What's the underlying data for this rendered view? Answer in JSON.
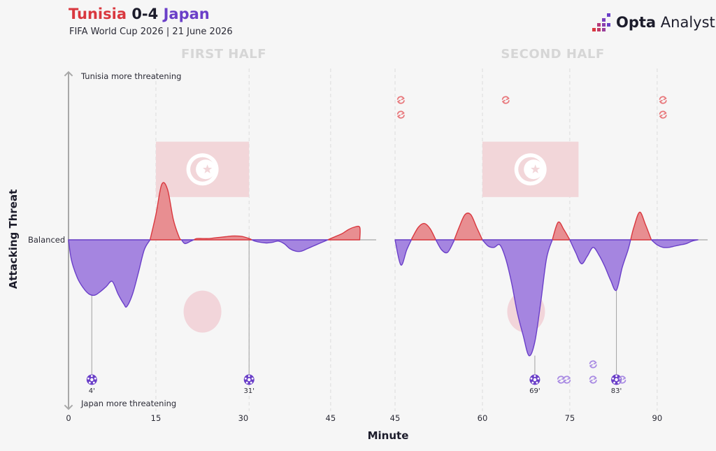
{
  "header": {
    "home_team": "Tunisia",
    "score": "0-4",
    "away_team": "Japan",
    "subtitle": "FIFA World Cup 2026 | 21 June 2026",
    "brand_bold": "Opta",
    "brand_light": " Analyst"
  },
  "colors": {
    "home": "#d9383f",
    "home_fill": "#e88e91",
    "away": "#6a3fc8",
    "away_fill": "#a585e0",
    "flag_fill": "#f2d6d9",
    "sub_home": "#e8787c",
    "sub_away": "#a98be3"
  },
  "icons": {
    "goal": "football-icon",
    "substitution": "substitution-icon",
    "brand": "opta-logo-icon"
  },
  "chart_data": {
    "type": "area",
    "xlabel": "Minute",
    "ylabel": "Attacking Threat",
    "top_annotation": "Tunisia more threatening",
    "bottom_annotation": "Japan more threatening",
    "baseline_label": "Balanced",
    "ylim": [
      -100,
      100
    ],
    "halves": [
      {
        "label": "FIRST HALF",
        "xlim": [
          0,
          54
        ],
        "ticks": [
          0,
          15,
          30,
          45
        ],
        "tick_labels": [
          "0",
          "15",
          "30",
          "45"
        ],
        "gridlines": [
          15,
          31,
          45
        ],
        "threat": {
          "x": [
            0,
            0.5,
            1.5,
            2.5,
            3.5,
            4.5,
            5.5,
            6.5,
            7.5,
            8.5,
            9.5,
            10,
            11,
            12,
            13,
            14,
            15,
            16,
            17,
            18,
            19,
            20,
            21,
            22,
            23,
            24,
            25,
            26,
            27,
            28,
            29,
            30,
            31,
            32,
            33,
            34,
            35,
            36,
            37,
            38,
            39,
            40,
            41,
            42,
            43,
            44,
            45,
            46,
            47,
            48,
            49,
            50
          ],
          "y": [
            0,
            -16,
            -30,
            -38,
            -43,
            -44,
            -41,
            -37,
            -33,
            -43,
            -51,
            -53,
            -43,
            -26,
            -8,
            0,
            20,
            44,
            40,
            16,
            2,
            -3,
            -1,
            1,
            1,
            1,
            1.5,
            2,
            2.5,
            3,
            3,
            2.5,
            1,
            -1,
            -2,
            -2.5,
            -2,
            -1,
            -3,
            -7,
            -9,
            -9,
            -7,
            -5,
            -3,
            -1,
            1,
            3,
            5,
            8,
            10,
            10
          ]
        },
        "flag": {
          "x_start": 15,
          "x_end": 31,
          "y_top": 78,
          "y_bottom": 34
        },
        "shot_circle": {
          "x": 23,
          "y": -57
        },
        "goals": [
          {
            "minute": 4,
            "label": "4'",
            "peak": -41
          },
          {
            "minute": 31,
            "label": "31'",
            "peak": 3
          }
        ],
        "subs_home": [],
        "subs_away": []
      },
      {
        "label": "SECOND HALF",
        "xlim": [
          45,
          99
        ],
        "ticks": [
          45,
          60,
          75,
          90
        ],
        "tick_labels": [
          "45",
          "60",
          "75",
          "90"
        ],
        "gridlines": [
          45,
          60,
          75,
          90
        ],
        "threat": {
          "x": [
            45,
            46,
            47,
            48,
            49,
            50,
            51,
            52,
            53,
            54,
            55,
            56,
            57,
            58,
            59,
            60,
            61,
            62,
            63,
            64,
            65,
            66,
            67,
            68,
            69,
            70,
            71,
            72,
            73,
            74,
            75,
            76,
            77,
            78,
            79,
            80,
            81,
            82,
            83,
            84,
            85,
            86,
            87,
            88,
            89,
            90,
            91,
            92,
            93,
            94,
            95,
            96,
            97,
            98
          ],
          "y": [
            0,
            -20,
            -8,
            2,
            10,
            13,
            9,
            0,
            -8,
            -10,
            -2,
            10,
            20,
            20,
            10,
            0,
            -5,
            -6,
            -4,
            -15,
            -34,
            -58,
            -76,
            -92,
            -81,
            -50,
            -15,
            0,
            14,
            8,
            0,
            -10,
            -19,
            -13,
            -6,
            -12,
            -21,
            -32,
            -40,
            -22,
            -8,
            10,
            22,
            12,
            0,
            -4,
            -6,
            -6,
            -5,
            -4,
            -3,
            -1,
            0,
            0
          ]
        },
        "flag": {
          "x_start": 60,
          "x_end": 76.5,
          "y_top": 78,
          "y_bottom": 34
        },
        "shot_circle": {
          "x": 67.5,
          "y": -57
        },
        "goals": [
          {
            "minute": 69,
            "label": "69'",
            "peak": -92
          },
          {
            "minute": 83,
            "label": "83'",
            "peak": -40
          }
        ],
        "subs_home": [
          {
            "minute": 46,
            "stack": 2
          },
          {
            "minute": 64,
            "stack": 1
          },
          {
            "minute": 91,
            "stack": 2
          }
        ],
        "subs_away": [
          {
            "minute": 73.5,
            "row": 0
          },
          {
            "minute": 74.5,
            "row": 0
          },
          {
            "minute": 79,
            "row": 0
          },
          {
            "minute": 79,
            "row": 1
          },
          {
            "minute": 84,
            "row": 0
          }
        ]
      }
    ]
  }
}
